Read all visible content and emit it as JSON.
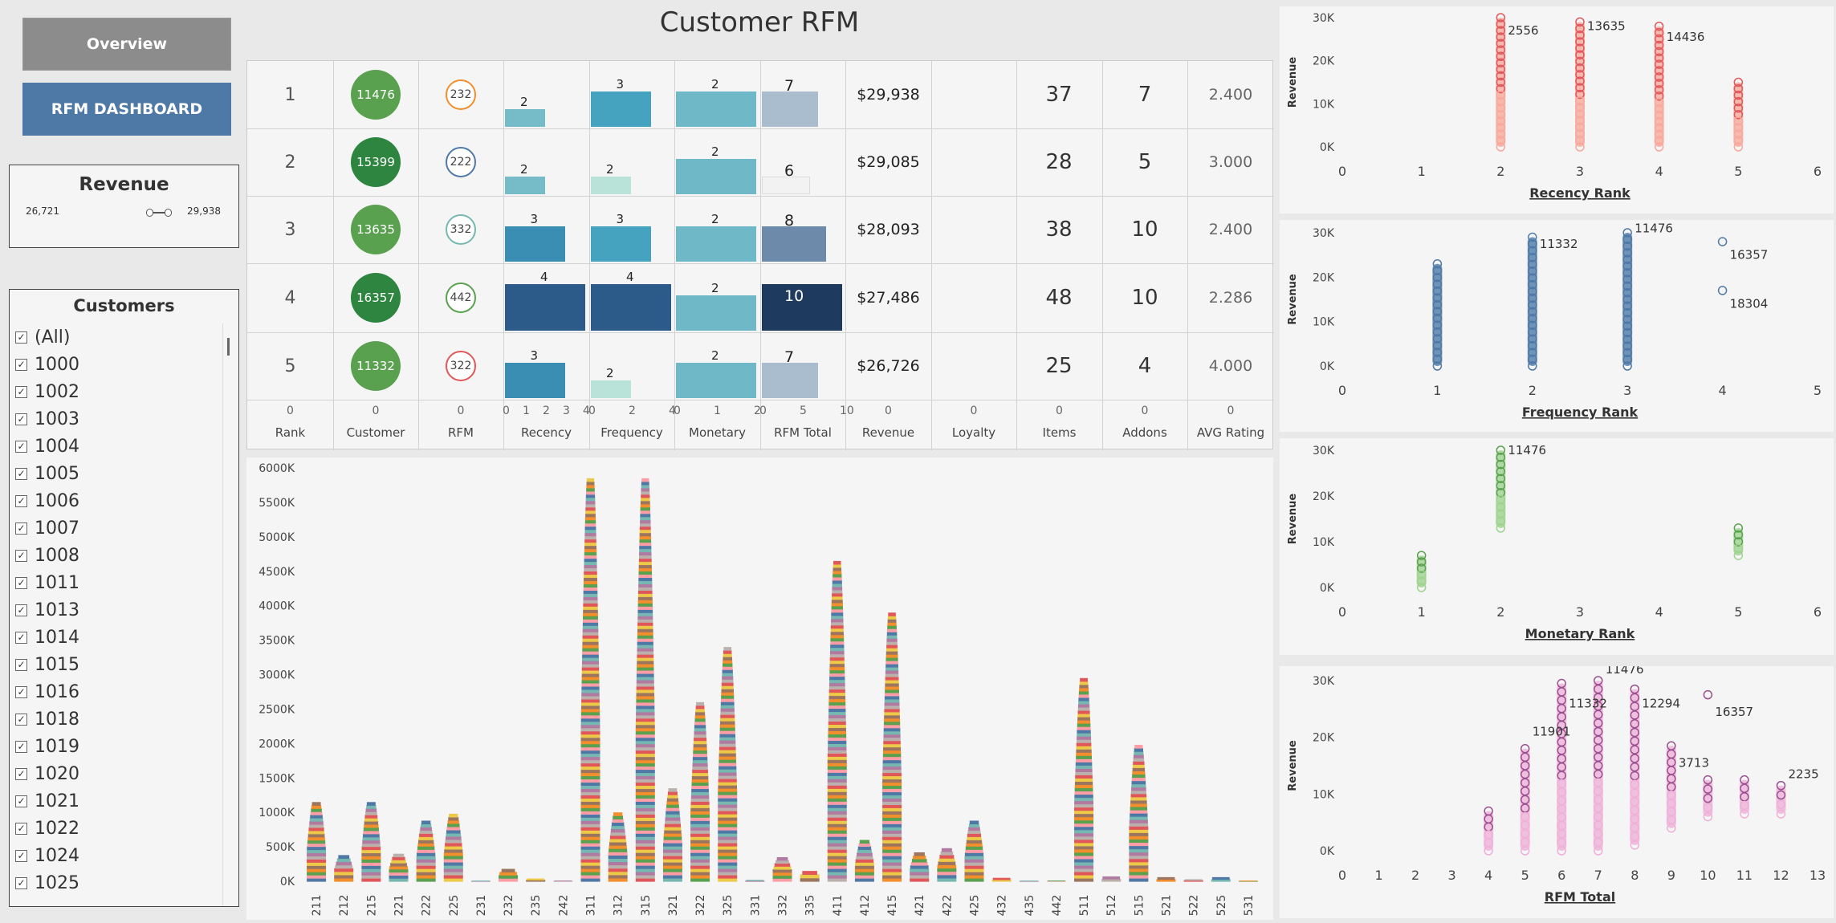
{
  "nav": {
    "overview_label": "Overview",
    "rfm_label": "RFM DASHBOARD"
  },
  "colors": {
    "overview": "#8c8c8c",
    "rfm": "#4e79a7",
    "green": "#59a14f",
    "dark_green": "#2e8540",
    "recency_red": "#e15759",
    "freq_blue": "#4e79a7",
    "mon_green": "#59a14f",
    "rfm_pink": "#c978b6"
  },
  "revenue_filter": {
    "title": "Revenue",
    "min": "26,721",
    "max": "29,938"
  },
  "customers_filter": {
    "title": "Customers",
    "items": [
      "(All)",
      "1000",
      "1002",
      "1003",
      "1004",
      "1005",
      "1006",
      "1007",
      "1008",
      "1011",
      "1013",
      "1014",
      "1015",
      "1016",
      "1018",
      "1019",
      "1020",
      "1021",
      "1022",
      "1024",
      "1025"
    ]
  },
  "page_title": "Customer  RFM",
  "table": {
    "headers": [
      "Rank",
      "Customer",
      "RFM",
      "Recency",
      "Frequency",
      "Monetary",
      "RFM Total",
      "Revenue",
      "Loyalty",
      "Items",
      "Addons",
      "AVG Rating"
    ],
    "zero_labels": [
      "0",
      "0",
      "0",
      "0",
      "0",
      "0",
      "0",
      "0",
      "0"
    ],
    "recency_axis": [
      "0",
      "1",
      "2",
      "3",
      "4"
    ],
    "frequency_axis": [
      "0",
      "2",
      "4"
    ],
    "monetary_axis": [
      "0",
      "1",
      "2"
    ],
    "rfm_total_axis": [
      "0",
      "5",
      "10"
    ],
    "rows": [
      {
        "rank": "1",
        "customer": "11476",
        "rfm": "232",
        "recency": 2,
        "frequency": 3,
        "monetary": 2,
        "rfm_total": 7,
        "revenue": "$29,938",
        "items": "37",
        "addons": "7",
        "avg_rating": "2.400",
        "circle_color": "#59a14f",
        "ring_color": "#f28e2b"
      },
      {
        "rank": "2",
        "customer": "15399",
        "rfm": "222",
        "recency": 2,
        "frequency": 2,
        "monetary": 2,
        "rfm_total": 6,
        "revenue": "$29,085",
        "items": "28",
        "addons": "5",
        "avg_rating": "3.000",
        "circle_color": "#2e8540",
        "ring_color": "#4e79a7"
      },
      {
        "rank": "3",
        "customer": "13635",
        "rfm": "332",
        "recency": 3,
        "frequency": 3,
        "monetary": 2,
        "rfm_total": 8,
        "revenue": "$28,093",
        "items": "38",
        "addons": "10",
        "avg_rating": "2.400",
        "circle_color": "#59a14f",
        "ring_color": "#76b7b2"
      },
      {
        "rank": "4",
        "customer": "16357",
        "rfm": "442",
        "recency": 4,
        "frequency": 4,
        "monetary": 2,
        "rfm_total": 10,
        "revenue": "$27,486",
        "items": "48",
        "addons": "10",
        "avg_rating": "2.286",
        "circle_color": "#2e8540",
        "ring_color": "#59a14f"
      },
      {
        "rank": "5",
        "customer": "11332",
        "rfm": "322",
        "recency": 3,
        "frequency": 2,
        "monetary": 2,
        "rfm_total": 7,
        "revenue": "$26,726",
        "items": "25",
        "addons": "4",
        "avg_rating": "4.000",
        "circle_color": "#59a14f",
        "ring_color": "#e15759"
      }
    ]
  },
  "chart_data": [
    {
      "type": "bar",
      "title": "",
      "ylabel": "",
      "y_ticks": [
        "0K",
        "500K",
        "1000K",
        "1500K",
        "2000K",
        "2500K",
        "3000K",
        "3500K",
        "4000K",
        "4500K",
        "5000K",
        "5500K",
        "6000K"
      ],
      "ylim": [
        0,
        6000000
      ],
      "categories": [
        "211",
        "212",
        "215",
        "221",
        "222",
        "225",
        "231",
        "232",
        "235",
        "242",
        "311",
        "312",
        "315",
        "321",
        "322",
        "325",
        "331",
        "332",
        "335",
        "411",
        "412",
        "415",
        "421",
        "422",
        "425",
        "432",
        "435",
        "442",
        "511",
        "512",
        "515",
        "521",
        "522",
        "525",
        "531"
      ],
      "values": [
        1150000,
        380000,
        1150000,
        400000,
        880000,
        980000,
        10000,
        180000,
        40000,
        10000,
        5850000,
        1000000,
        5850000,
        1350000,
        2600000,
        3400000,
        20000,
        350000,
        150000,
        4650000,
        600000,
        3900000,
        420000,
        480000,
        880000,
        50000,
        10000,
        10000,
        2950000,
        70000,
        1980000,
        60000,
        30000,
        60000,
        10000
      ]
    },
    {
      "type": "scatter",
      "xlabel": "Recency Rank",
      "ylabel": "Revenue",
      "x_ticks": [
        "0",
        "1",
        "2",
        "3",
        "4",
        "5",
        "6"
      ],
      "y_ticks": [
        "0K",
        "10K",
        "20K",
        "30K"
      ],
      "xlim": [
        0,
        6
      ],
      "ylim": [
        0,
        30000
      ],
      "columns": [
        {
          "x": 2,
          "min": 0,
          "max": 30000
        },
        {
          "x": 3,
          "min": 0,
          "max": 29000
        },
        {
          "x": 4,
          "min": 0,
          "max": 28000
        },
        {
          "x": 5,
          "min": 0,
          "max": 15000
        }
      ],
      "labels": [
        {
          "x": 2,
          "y": 27000,
          "text": "2556"
        },
        {
          "x": 3,
          "y": 28000,
          "text": "13635"
        },
        {
          "x": 4,
          "y": 25500,
          "text": "14436"
        }
      ]
    },
    {
      "type": "scatter",
      "xlabel": "Frequency Rank",
      "ylabel": "Revenue",
      "x_ticks": [
        "0",
        "1",
        "2",
        "3",
        "4",
        "5"
      ],
      "y_ticks": [
        "0K",
        "10K",
        "20K",
        "30K"
      ],
      "xlim": [
        0,
        5
      ],
      "ylim": [
        0,
        30000
      ],
      "columns": [
        {
          "x": 1,
          "min": 0,
          "max": 23000
        },
        {
          "x": 2,
          "min": 0,
          "max": 29000
        },
        {
          "x": 3,
          "min": 0,
          "max": 30000
        }
      ],
      "points": [
        {
          "x": 4,
          "y": 28000
        },
        {
          "x": 4,
          "y": 17000
        }
      ],
      "labels": [
        {
          "x": 2,
          "y": 27500,
          "text": "11332"
        },
        {
          "x": 3,
          "y": 31000,
          "text": "11476"
        },
        {
          "x": 4,
          "y": 25000,
          "text": "16357"
        },
        {
          "x": 4,
          "y": 14000,
          "text": "18304"
        }
      ]
    },
    {
      "type": "scatter",
      "xlabel": "Monetary Rank",
      "ylabel": "Revenue",
      "x_ticks": [
        "0",
        "1",
        "2",
        "3",
        "4",
        "5",
        "6"
      ],
      "y_ticks": [
        "0K",
        "10K",
        "20K",
        "30K"
      ],
      "xlim": [
        0,
        6
      ],
      "ylim": [
        0,
        30000
      ],
      "columns": [
        {
          "x": 1,
          "min": 0,
          "max": 7000
        },
        {
          "x": 2,
          "min": 13000,
          "max": 30000
        },
        {
          "x": 5,
          "min": 7000,
          "max": 13000
        }
      ],
      "labels": [
        {
          "x": 2,
          "y": 30000,
          "text": "11476"
        }
      ]
    },
    {
      "type": "scatter",
      "xlabel": "RFM Total",
      "ylabel": "Revenue",
      "x_ticks": [
        "0",
        "1",
        "2",
        "3",
        "4",
        "5",
        "6",
        "7",
        "8",
        "9",
        "10",
        "11",
        "12",
        "13"
      ],
      "y_ticks": [
        "0K",
        "10K",
        "20K",
        "30K"
      ],
      "xlim": [
        0,
        13
      ],
      "ylim": [
        0,
        30000
      ],
      "columns": [
        {
          "x": 4,
          "min": 0,
          "max": 7000
        },
        {
          "x": 5,
          "min": 0,
          "max": 18000
        },
        {
          "x": 6,
          "min": 0,
          "max": 29500
        },
        {
          "x": 7,
          "min": 0,
          "max": 30000
        },
        {
          "x": 8,
          "min": 1000,
          "max": 28500
        },
        {
          "x": 9,
          "min": 4000,
          "max": 18500
        },
        {
          "x": 10,
          "min": 6000,
          "max": 12500
        },
        {
          "x": 11,
          "min": 6500,
          "max": 12500
        },
        {
          "x": 12,
          "min": 6500,
          "max": 11500
        }
      ],
      "points": [
        {
          "x": 10,
          "y": 27500
        }
      ],
      "labels": [
        {
          "x": 6,
          "y": 26000,
          "text": "11332"
        },
        {
          "x": 5,
          "y": 21000,
          "text": "11901"
        },
        {
          "x": 7,
          "y": 32000,
          "text": "11476"
        },
        {
          "x": 8,
          "y": 26000,
          "text": "12294"
        },
        {
          "x": 9,
          "y": 15500,
          "text": "3713"
        },
        {
          "x": 10,
          "y": 24500,
          "text": "16357"
        },
        {
          "x": 12,
          "y": 13500,
          "text": "2235"
        }
      ]
    }
  ]
}
